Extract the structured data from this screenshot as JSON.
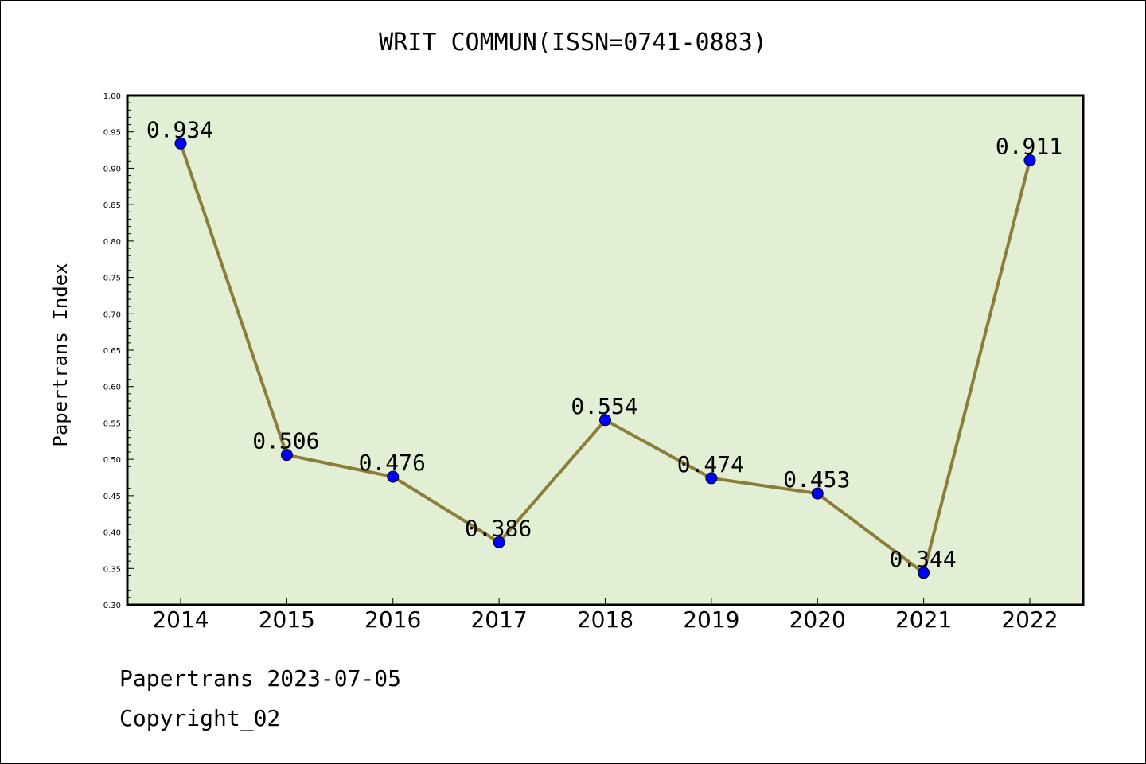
{
  "chart_data": {
    "type": "line",
    "title": "WRIT COMMUN(ISSN=0741-0883)",
    "ylabel": "Papertrans Index",
    "xlabel": "",
    "categories": [
      "2014",
      "2015",
      "2016",
      "2017",
      "2018",
      "2019",
      "2020",
      "2021",
      "2022"
    ],
    "series": [
      {
        "values": [
          0.934,
          0.506,
          0.476,
          0.386,
          0.554,
          0.474,
          0.453,
          0.344,
          0.911
        ],
        "labels": [
          "0.934",
          "0.506",
          "0.476",
          "0.386",
          "0.554",
          "0.474",
          "0.453",
          "0.344",
          "0.911"
        ]
      }
    ],
    "ylim": [
      0.3,
      1.0
    ],
    "yticks": [
      "0.30",
      "0.35",
      "0.40",
      "0.45",
      "0.50",
      "0.55",
      "0.60",
      "0.65",
      "0.70",
      "0.75",
      "0.80",
      "0.85",
      "0.90",
      "0.95",
      "1.00"
    ],
    "grid": false,
    "legend": "none",
    "colors": {
      "plot_background": "#e2efd5",
      "line": "#8b7d3a",
      "marker": "#0000ff"
    }
  },
  "footer": {
    "date_text": "Papertrans 2023-07-05",
    "copyright_text": "Copyright_02"
  }
}
